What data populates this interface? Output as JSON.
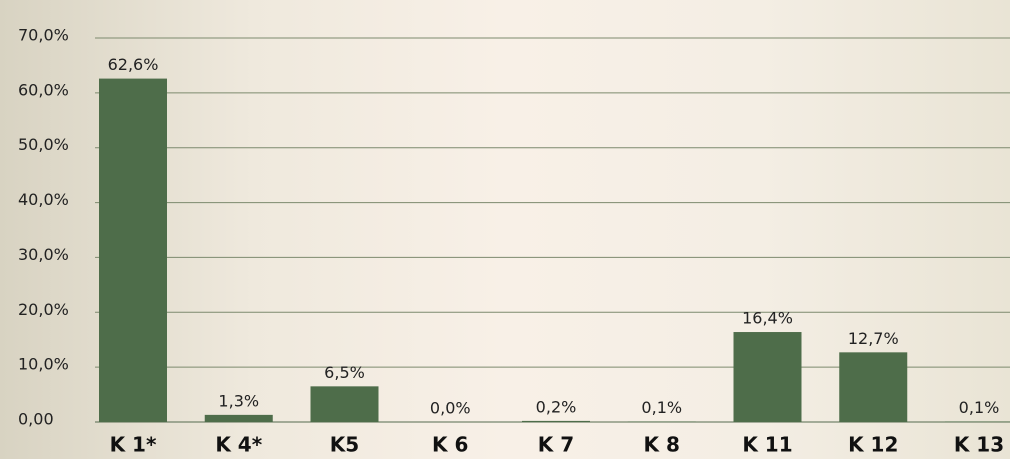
{
  "chart_data": {
    "type": "bar",
    "categories": [
      "K 1*",
      "K 4*",
      "K5",
      "K 6",
      "K 7",
      "K 8",
      "K 11",
      "K 12",
      "K 13"
    ],
    "values": [
      62.6,
      1.3,
      6.5,
      0.0,
      0.2,
      0.1,
      16.4,
      12.7,
      0.1
    ],
    "value_labels": [
      "62,6%",
      "1,3%",
      "6,5%",
      "0,0%",
      "0,2%",
      "0,1%",
      "16,4%",
      "12,7%",
      "0,1%"
    ],
    "color": "#4e6d4a",
    "ylim": [
      0,
      70
    ],
    "yticks": [
      {
        "value": 0,
        "label": "0,00"
      },
      {
        "value": 10,
        "label": "10,0%"
      },
      {
        "value": 20,
        "label": "20,0%"
      },
      {
        "value": 30,
        "label": "30,0%"
      },
      {
        "value": 40,
        "label": "40,0%"
      },
      {
        "value": 50,
        "label": "50,0%"
      },
      {
        "value": 60,
        "label": "60,0%"
      },
      {
        "value": 70,
        "label": "70,0%"
      }
    ],
    "grid": true
  }
}
